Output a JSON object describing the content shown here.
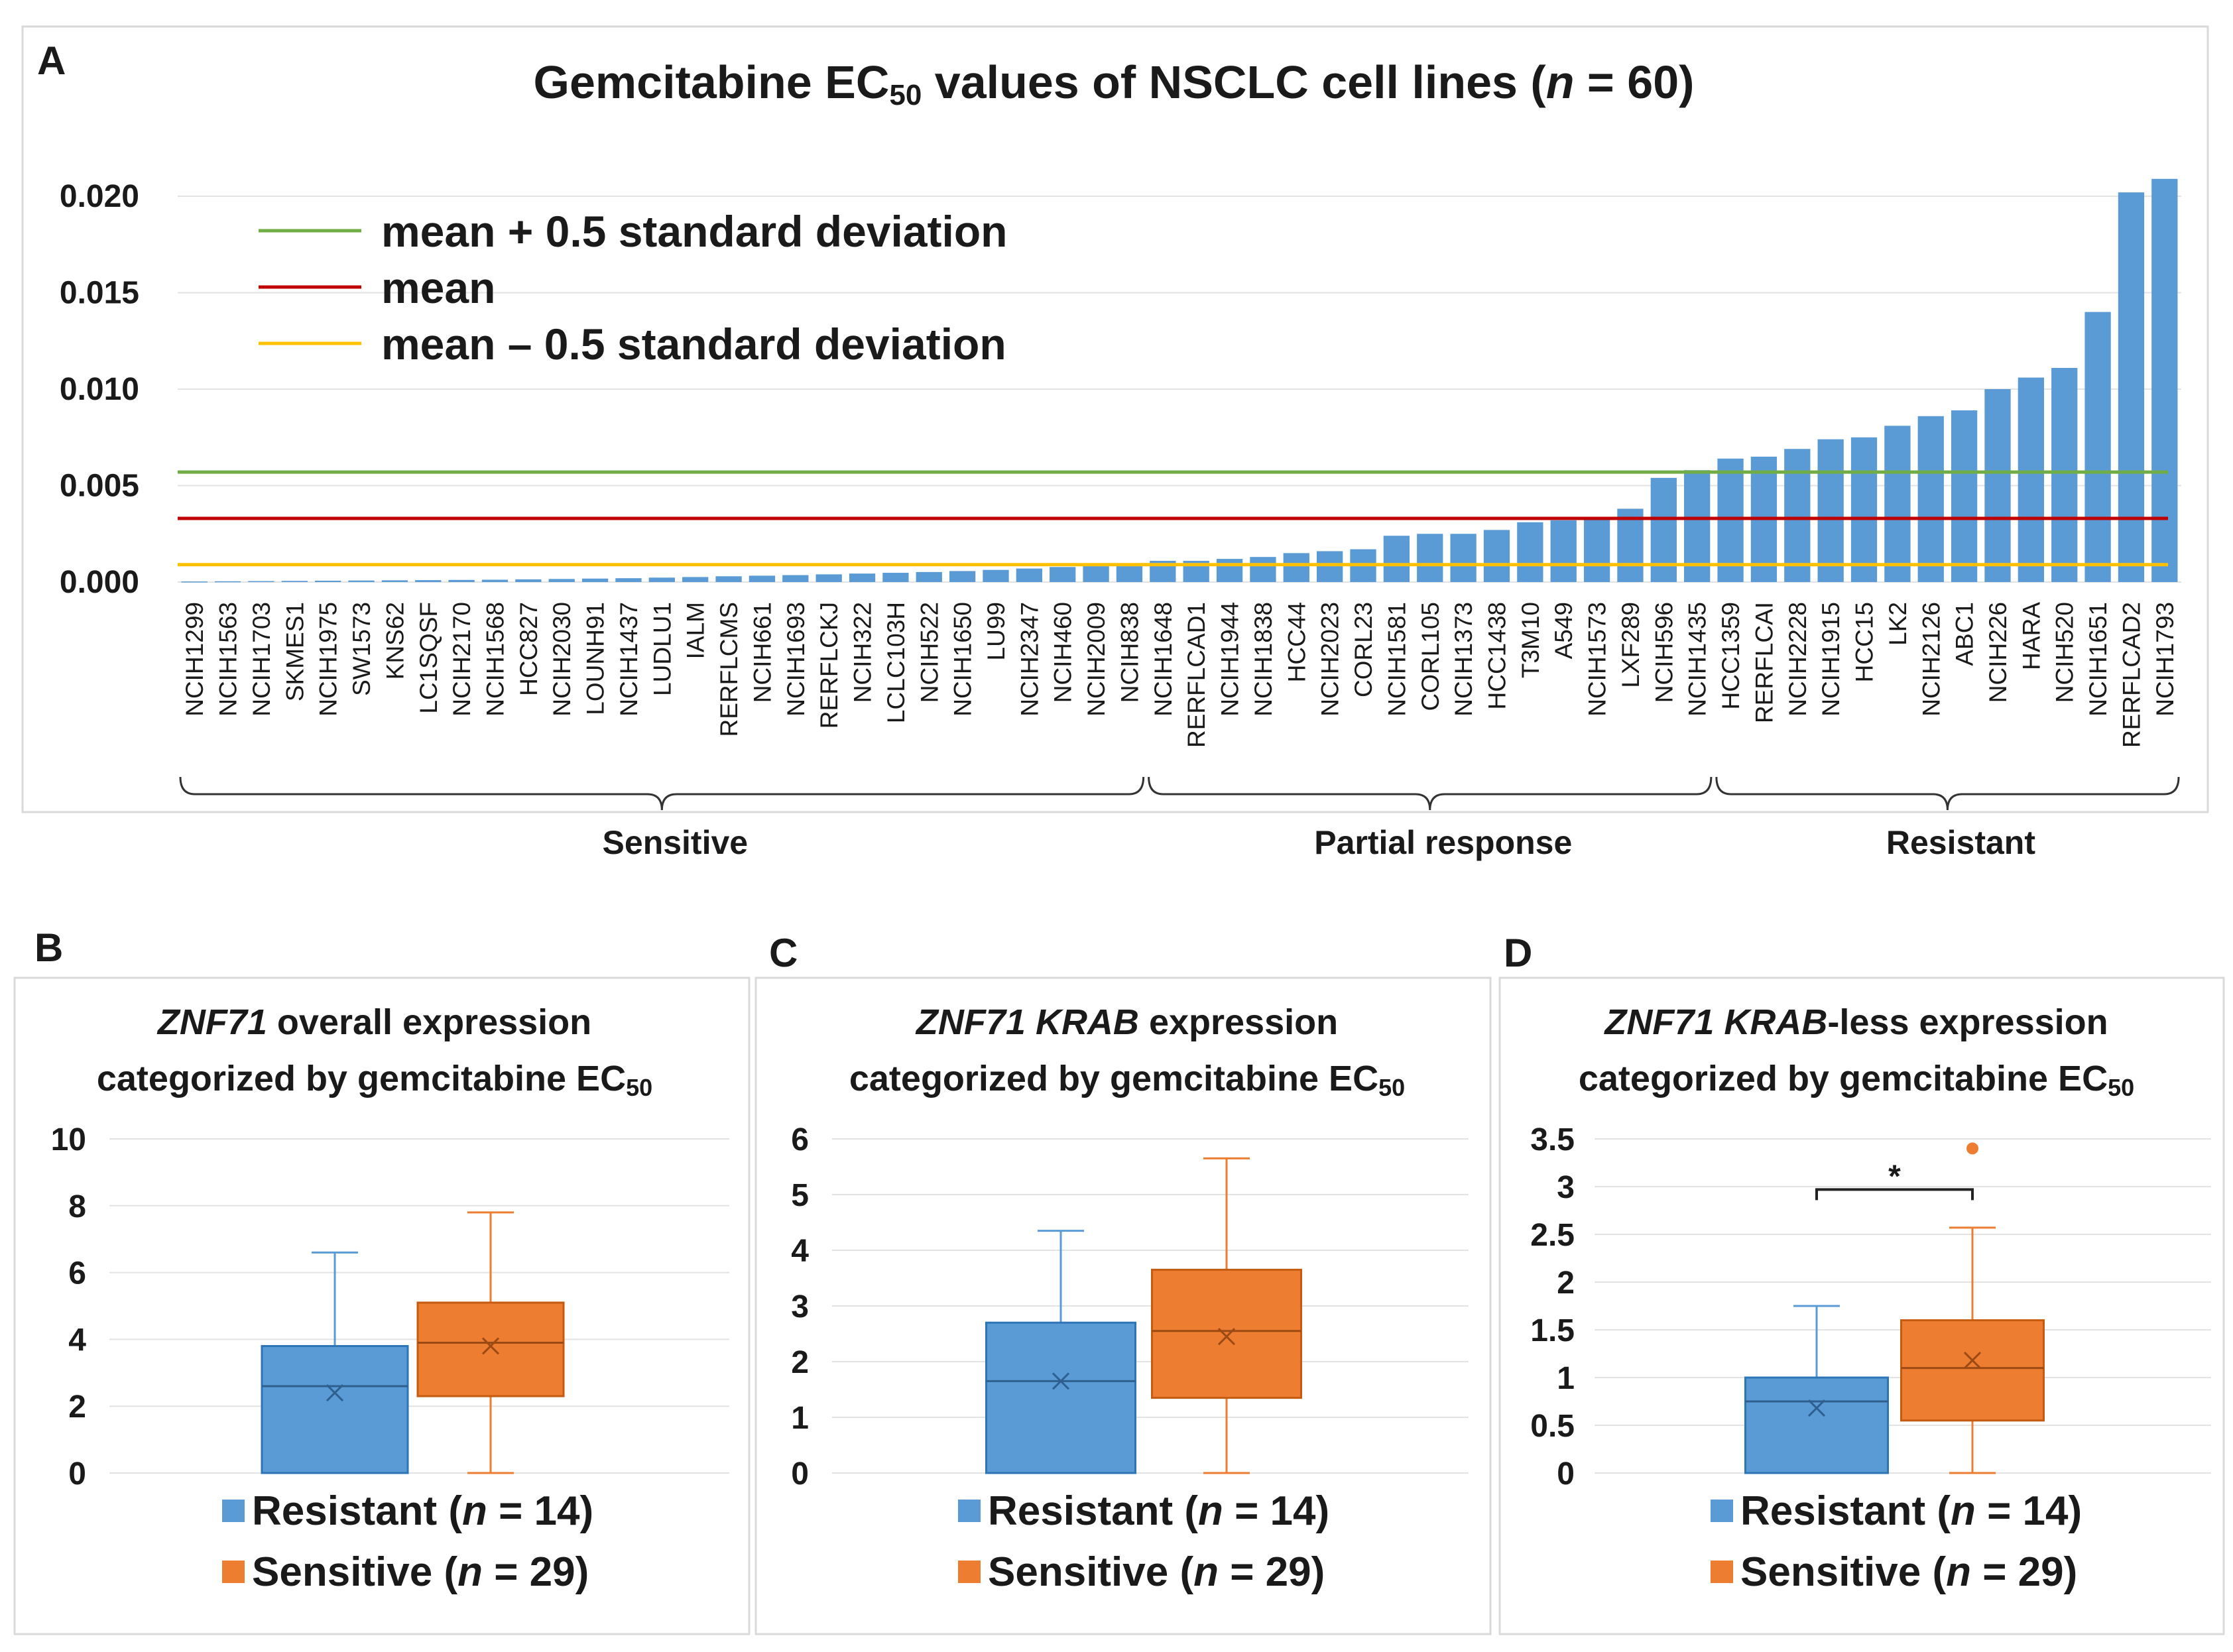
{
  "colors": {
    "bar": "#5b9bd5",
    "resistant": "#5b9bd5",
    "sensitive": "#ed7d31",
    "mean_plus": "#70ad47",
    "mean": "#c00000",
    "mean_minus": "#ffc000",
    "outlier": "#ed7d31"
  },
  "chart_data": [
    {
      "panel": "A",
      "type": "bar",
      "title_main": "Gemcitabine EC",
      "title_sub": "50",
      "title_rest": " values of NSCLC cell lines (",
      "title_n": "n",
      "title_end": " = 60)",
      "ylim": [
        0,
        0.02
      ],
      "yticks": [
        "0.000",
        "0.005",
        "0.010",
        "0.015",
        "0.020"
      ],
      "categories": [
        "NCIH1299",
        "NCIH1563",
        "NCIH1703",
        "SKMES1",
        "NCIH1975",
        "SW1573",
        "KNS62",
        "LC1SQSF",
        "NCIH2170",
        "NCIH1568",
        "HCC827",
        "NCIH2030",
        "LOUNH91",
        "NCIH1437",
        "LUDLU1",
        "IALM",
        "RERFLCMS",
        "NCIH661",
        "NCIH1693",
        "RERFLCKJ",
        "NCIH322",
        "LCLC103H",
        "NCIH522",
        "NCIH1650",
        "LU99",
        "NCIH2347",
        "NCIH460",
        "NCIH2009",
        "NCIH838",
        "NCIH1648",
        "RERFLCAD1",
        "NCIH1944",
        "NCIH1838",
        "HCC44",
        "NCIH2023",
        "CORL23",
        "NCIH1581",
        "CORL105",
        "NCIH1373",
        "HCC1438",
        "T3M10",
        "A549",
        "NCIH1573",
        "LXF289",
        "NCIH596",
        "NCIH1435",
        "HCC1359",
        "RERFLCAI",
        "NCIH2228",
        "NCIH1915",
        "HCC15",
        "LK2",
        "NCIH2126",
        "ABC1",
        "NCIH226",
        "HARA",
        "NCIH520",
        "NCIH1651",
        "RERFLCAD2",
        "NCIH1793"
      ],
      "values": [
        3e-05,
        4e-05,
        5e-05,
        6e-05,
        7e-05,
        8e-05,
        9e-05,
        0.0001,
        0.00011,
        0.00012,
        0.00014,
        0.00016,
        0.00018,
        0.0002,
        0.00023,
        0.00026,
        0.0003,
        0.00033,
        0.00036,
        0.0004,
        0.00044,
        0.00048,
        0.00052,
        0.00057,
        0.00063,
        0.0007,
        0.00078,
        0.00085,
        0.00092,
        0.0011,
        0.0011,
        0.0012,
        0.0013,
        0.0015,
        0.0016,
        0.0017,
        0.0024,
        0.0025,
        0.0025,
        0.0027,
        0.0031,
        0.0032,
        0.0033,
        0.0038,
        0.0054,
        0.0058,
        0.0064,
        0.0065,
        0.0069,
        0.0074,
        0.0075,
        0.0081,
        0.0086,
        0.0089,
        0.01,
        0.0106,
        0.0111,
        0.014,
        0.0202,
        0.0209
      ],
      "reference_lines": [
        {
          "label": "mean + 0.5 standard deviation",
          "value": 0.0057,
          "color": "#70ad47"
        },
        {
          "label": "mean",
          "value": 0.0033,
          "color": "#c00000"
        },
        {
          "label": "mean – 0.5 standard deviation",
          "value": 0.0009,
          "color": "#ffc000"
        }
      ],
      "groups": [
        {
          "label": "Sensitive",
          "from": 0,
          "to": 28
        },
        {
          "label": "Partial response",
          "from": 29,
          "to": 45
        },
        {
          "label": "Resistant",
          "from": 46,
          "to": 59
        }
      ]
    },
    {
      "panel": "B",
      "type": "box",
      "title_gene": "ZNF71",
      "title_rest": " overall expression",
      "title_line2": "categorized by gemcitabine EC",
      "title_line2_sub": "50",
      "ylim": [
        0,
        10
      ],
      "yticks": [
        "0",
        "2",
        "4",
        "6",
        "8",
        "10"
      ],
      "series": [
        {
          "name": "Resistant",
          "n": "14",
          "min": 0,
          "q1": 0,
          "median": 2.6,
          "q3": 3.8,
          "max": 6.6,
          "mean": 2.4,
          "outliers": []
        },
        {
          "name": "Sensitive",
          "n": "29",
          "min": 0,
          "q1": 2.3,
          "median": 3.9,
          "q3": 5.1,
          "max": 7.8,
          "mean": 3.8,
          "outliers": []
        }
      ]
    },
    {
      "panel": "C",
      "type": "box",
      "title_gene": "ZNF71 KRAB",
      "title_rest": " expression",
      "title_line2": "categorized by gemcitabine EC",
      "title_line2_sub": "50",
      "ylim": [
        0,
        6
      ],
      "yticks": [
        "0",
        "1",
        "2",
        "3",
        "4",
        "5",
        "6"
      ],
      "series": [
        {
          "name": "Resistant",
          "n": "14",
          "min": 0,
          "q1": 0,
          "median": 1.65,
          "q3": 2.7,
          "max": 4.35,
          "mean": 1.65,
          "outliers": []
        },
        {
          "name": "Sensitive",
          "n": "29",
          "min": 0,
          "q1": 1.35,
          "median": 2.55,
          "q3": 3.65,
          "max": 5.65,
          "mean": 2.45,
          "outliers": []
        }
      ]
    },
    {
      "panel": "D",
      "type": "box",
      "title_gene": "ZNF71 KRAB",
      "title_rest": "-less expression",
      "title_line2": "categorized by gemcitabine EC",
      "title_line2_sub": "50",
      "ylim": [
        0,
        3.5
      ],
      "yticks": [
        "0",
        "0.5",
        "1",
        "1.5",
        "2",
        "2.5",
        "3",
        "3.5"
      ],
      "significance": "*",
      "series": [
        {
          "name": "Resistant",
          "n": "14",
          "min": 0,
          "q1": 0,
          "median": 0.75,
          "q3": 1.0,
          "max": 1.75,
          "mean": 0.68,
          "outliers": []
        },
        {
          "name": "Sensitive",
          "n": "29",
          "min": 0,
          "q1": 0.55,
          "median": 1.1,
          "q3": 1.6,
          "max": 2.57,
          "mean": 1.18,
          "outliers": [
            3.4
          ]
        }
      ]
    }
  ]
}
